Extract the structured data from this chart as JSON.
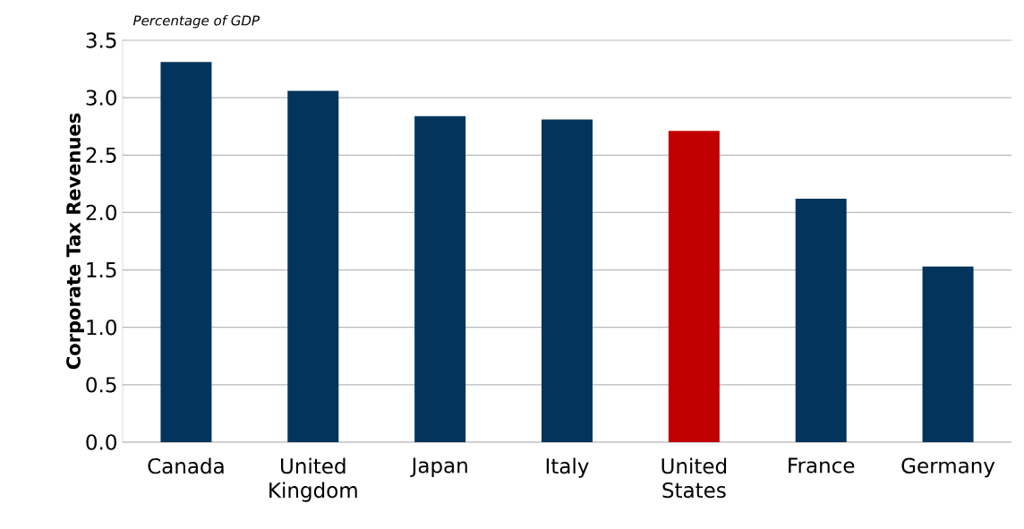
{
  "chart_data": {
    "type": "bar",
    "subtitle": "Percentage of GDP",
    "ylabel": "Corporate Tax Revenues",
    "categories": [
      "Canada",
      "United Kingdom",
      "Japan",
      "Italy",
      "United States",
      "France",
      "Germany"
    ],
    "values": [
      3.31,
      3.06,
      2.84,
      2.81,
      2.71,
      2.12,
      1.53
    ],
    "colors": [
      "#02345c",
      "#02345c",
      "#02345c",
      "#02345c",
      "#c00000",
      "#02345c",
      "#02345c"
    ],
    "ylim": [
      0,
      3.5
    ],
    "yticks": [
      {
        "value": 0,
        "label": "0.0"
      },
      {
        "value": 0.5,
        "label": "0.5"
      },
      {
        "value": 1,
        "label": "1.0"
      },
      {
        "value": 1.5,
        "label": "1.5"
      },
      {
        "value": 2,
        "label": "2.0"
      },
      {
        "value": 2.5,
        "label": "2.5"
      },
      {
        "value": 3,
        "label": "3.0"
      },
      {
        "value": 3.5,
        "label": "3.5"
      }
    ],
    "grid": "y"
  }
}
